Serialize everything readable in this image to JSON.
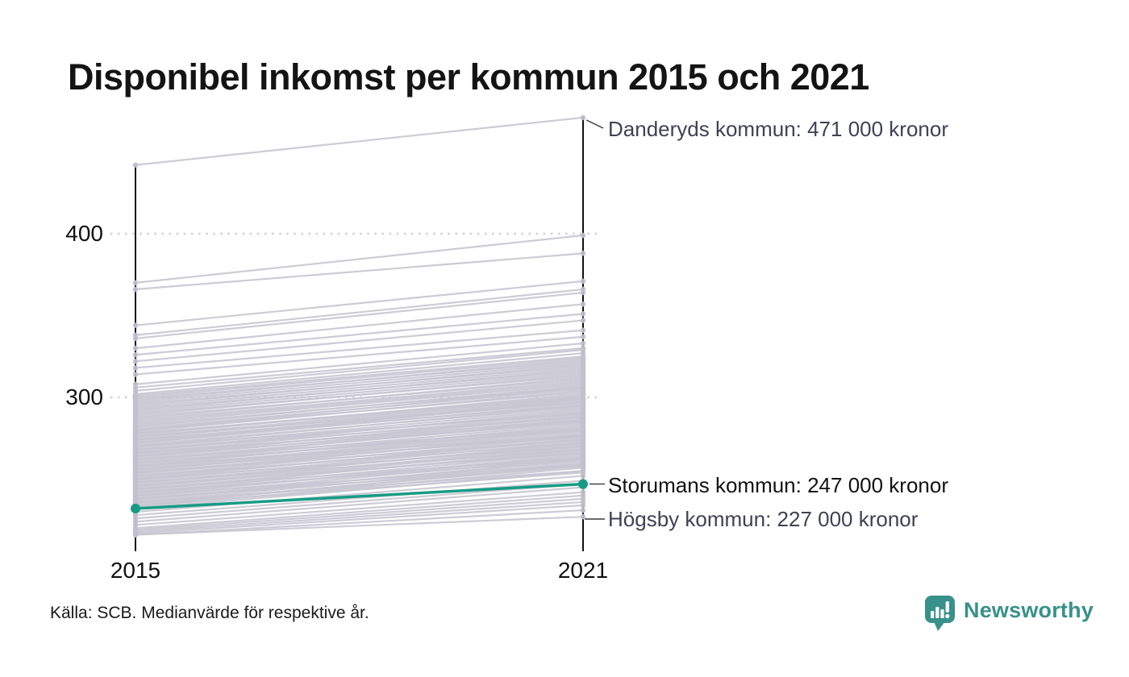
{
  "title": "Disponibel inkomst per kommun 2015 och 2021",
  "source": "Källa: SCB. Medianvärde för respektive år.",
  "brand": {
    "name": "Newsworthy",
    "color": "#38918a"
  },
  "chart_data": {
    "type": "line",
    "subtype": "slope-chart",
    "x": [
      2015,
      2021
    ],
    "x_labels": [
      "2015",
      "2021"
    ],
    "y_ticks": [
      300,
      400
    ],
    "ylim": [
      212,
      478
    ],
    "y_unit": "tusen kronor (000 kronor)",
    "grid": "dotted horizontal at y ticks",
    "colors": {
      "background_line": "#c8c5d2",
      "background_dot": "#c3c0ce",
      "highlight": "#189b85",
      "axis": "#111111",
      "gridline": "#d7d7da",
      "leader": "#3a3a3a"
    },
    "annotations": [
      {
        "text": "Danderyds kommun: 471 000 kronor",
        "year": 2021,
        "value": 471
      },
      {
        "text": "Storumans kommun: 247 000 kronor",
        "year": 2021,
        "value": 247
      },
      {
        "text": "Högsby kommun: 227 000 kronor",
        "year": 2021,
        "value": 227
      }
    ],
    "highlight_series": {
      "name": "Storumans kommun",
      "values": [
        232,
        247
      ]
    },
    "named_background_series": [
      {
        "name": "Danderyds kommun",
        "values": [
          442,
          471
        ]
      },
      {
        "name": "Högsby kommun",
        "values": [
          216,
          227
        ]
      }
    ],
    "background_series_note": "approximate 2015/2021 value pairs read from pixels; one pair per municipality line",
    "background_series": [
      [
        442,
        471
      ],
      [
        370,
        399
      ],
      [
        366,
        388
      ],
      [
        344,
        371
      ],
      [
        338,
        366
      ],
      [
        336,
        364
      ],
      [
        330,
        357
      ],
      [
        326,
        351
      ],
      [
        322,
        347
      ],
      [
        318,
        341
      ],
      [
        314,
        337
      ],
      [
        308,
        333
      ],
      [
        306,
        330
      ],
      [
        304,
        329
      ],
      [
        302,
        327
      ],
      [
        301,
        325
      ],
      [
        300,
        324
      ],
      [
        299,
        322
      ],
      [
        298,
        323
      ],
      [
        297,
        321
      ],
      [
        296,
        319
      ],
      [
        295,
        320
      ],
      [
        294,
        318
      ],
      [
        293,
        316
      ],
      [
        292,
        317
      ],
      [
        291,
        315
      ],
      [
        290,
        313
      ],
      [
        289,
        314
      ],
      [
        288,
        311
      ],
      [
        287,
        312
      ],
      [
        286,
        310
      ],
      [
        285,
        309
      ],
      [
        284,
        308
      ],
      [
        283,
        306
      ],
      [
        282,
        307
      ],
      [
        281,
        305
      ],
      [
        280,
        303
      ],
      [
        279,
        304
      ],
      [
        278,
        301
      ],
      [
        277,
        302
      ],
      [
        276,
        300
      ],
      [
        275,
        299
      ],
      [
        274,
        297
      ],
      [
        273,
        298
      ],
      [
        272,
        296
      ],
      [
        271,
        294
      ],
      [
        270,
        295
      ],
      [
        269,
        293
      ],
      [
        268,
        291
      ],
      [
        267,
        292
      ],
      [
        266,
        290
      ],
      [
        265,
        288
      ],
      [
        264,
        289
      ],
      [
        263,
        287
      ],
      [
        262,
        285
      ],
      [
        261,
        286
      ],
      [
        260,
        284
      ],
      [
        259,
        282
      ],
      [
        258,
        283
      ],
      [
        257,
        281
      ],
      [
        256,
        280
      ],
      [
        255,
        279
      ],
      [
        254,
        277
      ],
      [
        253,
        278
      ],
      [
        252,
        276
      ],
      [
        251,
        274
      ],
      [
        250,
        275
      ],
      [
        249,
        273
      ],
      [
        248,
        271
      ],
      [
        247,
        272
      ],
      [
        246,
        270
      ],
      [
        245,
        269
      ],
      [
        244,
        267
      ],
      [
        243,
        268
      ],
      [
        242,
        266
      ],
      [
        241,
        264
      ],
      [
        240,
        265
      ],
      [
        239,
        263
      ],
      [
        238,
        261
      ],
      [
        237,
        262
      ],
      [
        236,
        260
      ],
      [
        235,
        258
      ],
      [
        234,
        259
      ],
      [
        233,
        257
      ],
      [
        232,
        255
      ],
      [
        280,
        306
      ],
      [
        276,
        297
      ],
      [
        272,
        299
      ],
      [
        268,
        288
      ],
      [
        264,
        285
      ],
      [
        260,
        280
      ],
      [
        256,
        276
      ],
      [
        252,
        272
      ],
      [
        248,
        268
      ],
      [
        244,
        263
      ],
      [
        240,
        259
      ],
      [
        236,
        255
      ],
      [
        250,
        270
      ],
      [
        246,
        266
      ],
      [
        242,
        262
      ],
      [
        238,
        258
      ],
      [
        234,
        254
      ],
      [
        262,
        281
      ],
      [
        266,
        286
      ],
      [
        270,
        290
      ],
      [
        274,
        295
      ],
      [
        278,
        300
      ],
      [
        258,
        277
      ],
      [
        254,
        274
      ],
      [
        230,
        252
      ],
      [
        228,
        249
      ],
      [
        226,
        247
      ],
      [
        224,
        245
      ],
      [
        222,
        242
      ],
      [
        220,
        240
      ],
      [
        219,
        238
      ],
      [
        218,
        236
      ],
      [
        217,
        234
      ],
      [
        216,
        231
      ],
      [
        216,
        227
      ]
    ]
  }
}
